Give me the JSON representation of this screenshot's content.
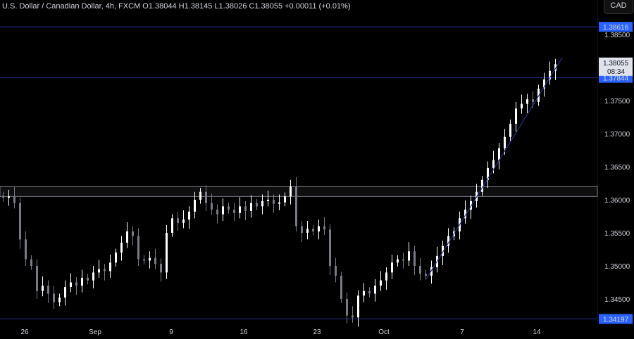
{
  "header": {
    "title": "U.S. Dollar / Canadian Dollar, 4h, FXCM  O1.38044  H1.38145  L1.38026  C1.38055  +0.00011 (+0.01%)",
    "currency": "CAD"
  },
  "colors": {
    "up": "#ffffff",
    "down": "#787b86",
    "line": "#2a2e8f",
    "label_bg": "#2962ff",
    "zone": "#9598a1"
  },
  "chart_data": {
    "type": "candlestick",
    "y_ticks": [
      "1.38500",
      "1.37500",
      "1.37000",
      "1.36500",
      "1.36000",
      "1.35500",
      "1.35000",
      "1.34500"
    ],
    "x_ticks": [
      "26",
      "Sep",
      "9",
      "16",
      "23",
      "Oct",
      "7",
      "14"
    ],
    "closes": [
      1.3603,
      1.3605,
      1.3595,
      1.354,
      1.351,
      1.35,
      1.3462,
      1.347,
      1.3458,
      1.3445,
      1.3452,
      1.3468,
      1.3475,
      1.347,
      1.3482,
      1.3478,
      1.349,
      1.3495,
      1.3492,
      1.3505,
      1.352,
      1.3535,
      1.3552,
      1.3545,
      1.351,
      1.3508,
      1.3512,
      1.3503,
      1.349,
      1.355,
      1.3572,
      1.3565,
      1.357,
      1.3582,
      1.36,
      1.3612,
      1.3595,
      1.3585,
      1.3578,
      1.359,
      1.3585,
      1.358,
      1.359,
      1.3583,
      1.3595,
      1.359,
      1.3598,
      1.36,
      1.3594,
      1.3596,
      1.3605,
      1.362,
      1.356,
      1.355,
      1.3556,
      1.3552,
      1.356,
      1.3555,
      1.35,
      1.3485,
      1.345,
      1.3425,
      1.3422,
      1.3455,
      1.3462,
      1.3458,
      1.347,
      1.3478,
      1.349,
      1.3505,
      1.351,
      1.3508,
      1.3522,
      1.35,
      1.3488,
      1.3485,
      1.3498,
      1.3515,
      1.353,
      1.3545,
      1.3552,
      1.3572,
      1.3585,
      1.3598,
      1.3612,
      1.363,
      1.3648,
      1.366,
      1.3678,
      1.3695,
      1.3715,
      1.3738,
      1.3745,
      1.3752,
      1.3748,
      1.3768,
      1.3782,
      1.3795,
      1.3805
    ],
    "levels": [
      1.38616,
      1.37844,
      1.34197
    ],
    "level_labels": [
      "1.38616",
      "1.37844",
      "1.34197"
    ],
    "zone": [
      1.3605,
      1.362
    ],
    "trendline": {
      "from": 1.348,
      "to": 1.3815
    },
    "current": {
      "price": "1.38055",
      "countdown": "08:34"
    }
  }
}
